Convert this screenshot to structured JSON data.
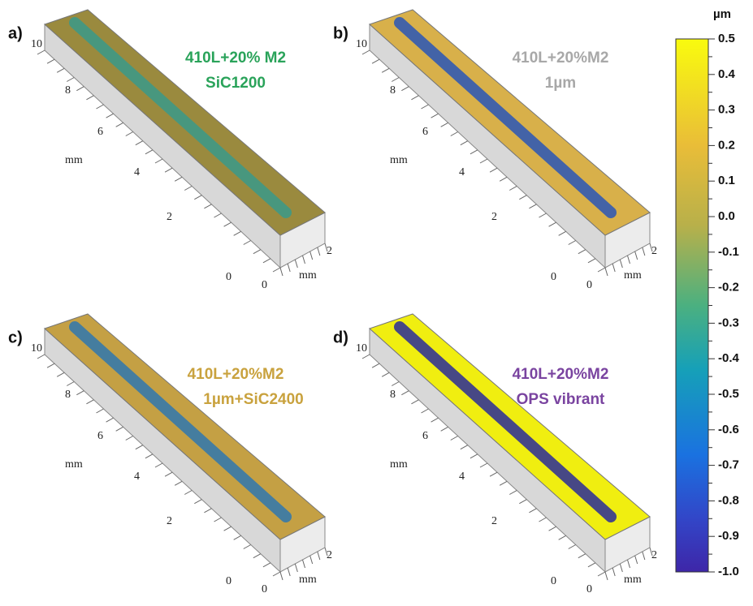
{
  "panels": [
    {
      "label": "a)",
      "title": [
        "410L+20% M2",
        "SiC1200"
      ],
      "y_ticks": [
        "10",
        "8",
        "6",
        "4",
        "2",
        "0"
      ],
      "y_axis_label": "mm",
      "x_ticks": [
        "0",
        "2"
      ],
      "x_axis_label": "mm"
    },
    {
      "label": "b)",
      "title": [
        "410L+20%M2",
        "1µm"
      ],
      "y_ticks": [
        "10",
        "8",
        "6",
        "4",
        "2",
        "0"
      ],
      "y_axis_label": "mm",
      "x_ticks": [
        "0",
        "2"
      ],
      "x_axis_label": "mm"
    },
    {
      "label": "c)",
      "title": [
        "410L+20%M2",
        "1µm+SiC2400"
      ],
      "y_ticks": [
        "10",
        "8",
        "6",
        "4",
        "2",
        "0"
      ],
      "y_axis_label": "mm",
      "x_ticks": [
        "0",
        "2"
      ],
      "x_axis_label": "mm"
    },
    {
      "label": "d)",
      "title": [
        "410L+20%M2",
        "OPS vibrant"
      ],
      "y_ticks": [
        "10",
        "8",
        "6",
        "4",
        "2",
        "0"
      ],
      "y_axis_label": "mm",
      "x_ticks": [
        "0",
        "2"
      ],
      "x_axis_label": "mm"
    }
  ],
  "colorbar": {
    "unit": "µm",
    "ticks": [
      {
        "value": 0.5,
        "label": "0.5"
      },
      {
        "value": 0.4,
        "label": "0.4"
      },
      {
        "value": 0.3,
        "label": "0.3"
      },
      {
        "value": 0.2,
        "label": "0.2"
      },
      {
        "value": 0.1,
        "label": "0.1"
      },
      {
        "value": 0.0,
        "label": "0.0"
      },
      {
        "value": -0.1,
        "label": "-0.1"
      },
      {
        "value": -0.2,
        "label": "-0.2"
      },
      {
        "value": -0.3,
        "label": "-0.3"
      },
      {
        "value": -0.4,
        "label": "-0.4"
      },
      {
        "value": -0.5,
        "label": "-0.5"
      },
      {
        "value": -0.6,
        "label": "-0.6"
      },
      {
        "value": -0.7,
        "label": "-0.7"
      },
      {
        "value": -0.8,
        "label": "-0.8"
      },
      {
        "value": -0.9,
        "label": "-0.9"
      },
      {
        "value": -1.0,
        "label": "-1.0"
      }
    ]
  }
}
